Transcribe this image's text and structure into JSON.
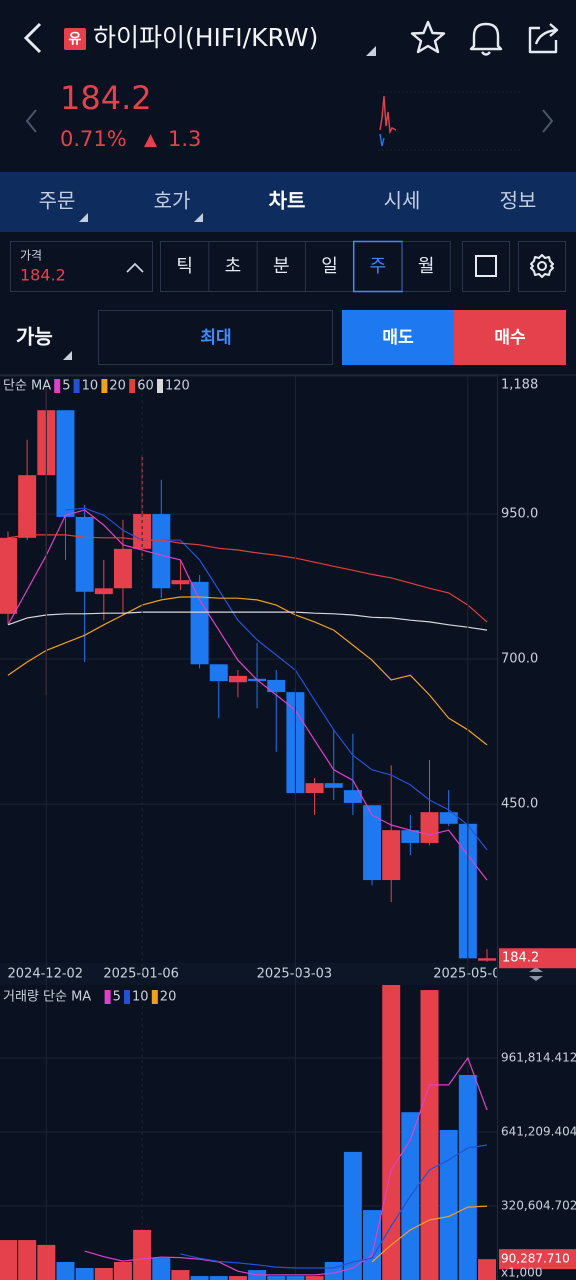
{
  "header": {
    "badge": "유",
    "title": "하이파이(HIFI/KRW)"
  },
  "quote": {
    "price": "184.2",
    "change_pct": "0.71%",
    "arrow": "▲",
    "change": "1.3"
  },
  "tabs": [
    "주문",
    "호가",
    "차트",
    "시세",
    "정보"
  ],
  "active_tab": 2,
  "price_box": {
    "label": "가격",
    "value": "184.2"
  },
  "periods": [
    "틱",
    "초",
    "분",
    "일",
    "주",
    "월"
  ],
  "active_period": 4,
  "order": {
    "available": "가능",
    "max": "최대",
    "sell": "매도",
    "buy": "매수"
  },
  "chart_data": [
    {
      "type": "candlestick",
      "legend_label": "단순 MA",
      "categories": [
        null,
        null,
        "2024-12-02",
        null,
        null,
        null,
        null,
        "2025-01-06",
        null,
        null,
        null,
        null,
        null,
        null,
        null,
        "2025-03-03",
        null,
        null,
        null,
        null,
        null,
        null,
        null,
        null,
        "2025-05-0",
        null
      ],
      "open": [
        778,
        909,
        1017,
        1129,
        945,
        812,
        822,
        890,
        950,
        829,
        833,
        691,
        660,
        666,
        664,
        643,
        469,
        486,
        474,
        448,
        319,
        405,
        383,
        436,
        416,
        180
      ],
      "high": [
        920,
        1078,
        1172,
        1129,
        966,
        871,
        940,
        1052,
        1009,
        871,
        845,
        691,
        681,
        728,
        681,
        650,
        495,
        578,
        571,
        448,
        517,
        431,
        526,
        474,
        452,
        200
      ],
      "low": [
        760,
        905,
        638,
        871,
        695,
        767,
        776,
        871,
        805,
        819,
        684,
        598,
        634,
        615,
        540,
        466,
        431,
        457,
        431,
        310,
        281,
        362,
        379,
        412,
        180,
        178
      ],
      "close": [
        909,
        1017,
        1129,
        945,
        816,
        822,
        890,
        950,
        822,
        836,
        691,
        662,
        671,
        662,
        643,
        469,
        486,
        478,
        452,
        319,
        405,
        383,
        436,
        416,
        184,
        184.2
      ],
      "up_color": "#e5414d",
      "down_color": "#1e78f0",
      "series": [
        {
          "name": "5",
          "color": "#e040c8",
          "values": [
            759,
            819,
            879,
            948,
            957,
            931,
            897,
            888,
            879,
            871,
            802,
            750,
            698,
            664,
            638,
            612,
            560,
            509,
            491,
            431,
            414,
            405,
            397,
            405,
            362,
            319
          ]
        },
        {
          "name": "10",
          "color": "#2452d6",
          "values": [
            null,
            null,
            null,
            957,
            960,
            948,
            922,
            905,
            905,
            905,
            871,
            819,
            767,
            733,
            707,
            681,
            629,
            578,
            534,
            509,
            500,
            483,
            457,
            440,
            414,
            371
          ]
        },
        {
          "name": "20",
          "color": "#f0a020",
          "values": [
            672,
            695,
            715,
            728,
            741,
            759,
            776,
            793,
            802,
            807,
            807,
            805,
            805,
            802,
            793,
            776,
            764,
            750,
            724,
            698,
            664,
            672,
            638,
            598,
            578,
            552
          ]
        },
        {
          "name": "60",
          "color": "#e0403c",
          "values": [
            909,
            914,
            914,
            914,
            910,
            909,
            909,
            905,
            905,
            900,
            897,
            891,
            888,
            883,
            879,
            874,
            867,
            860,
            853,
            846,
            840,
            831,
            822,
            814,
            793,
            764
          ]
        },
        {
          "name": "120",
          "color": "#d8d8d8",
          "values": [
            759,
            771,
            776,
            778,
            778,
            779,
            779,
            781,
            781,
            781,
            781,
            781,
            781,
            781,
            781,
            781,
            779,
            778,
            776,
            772,
            771,
            767,
            764,
            759,
            755,
            750
          ]
        }
      ],
      "ylim": [
        176,
        1188
      ],
      "yticks": [
        {
          "value": 1188,
          "label": "1,188"
        },
        {
          "value": 950,
          "label": "950.0"
        },
        {
          "value": 700,
          "label": "700.0"
        },
        {
          "value": 450,
          "label": "450.0"
        }
      ],
      "grid": true
    },
    {
      "type": "bar",
      "legend_label": "거래량 단순 MA",
      "values": [
        173000,
        173000,
        152000,
        78000,
        52000,
        52000,
        78000,
        217000,
        95000,
        43000,
        17000,
        17000,
        17000,
        43000,
        17000,
        17000,
        17000,
        78000,
        555000,
        303000,
        1300000,
        727000,
        1256000,
        650000,
        888000,
        90287.71
      ],
      "value_labels": [
        null,
        null,
        null,
        null,
        null,
        null,
        null,
        null,
        null,
        null,
        null,
        null,
        null,
        null,
        null,
        null,
        null,
        null,
        null,
        null,
        null,
        null,
        null,
        null,
        null,
        "90,287.710"
      ],
      "series": [
        {
          "name": "5",
          "color": "#e040c8",
          "values": [
            null,
            null,
            null,
            null,
            125000,
            101000,
            82000,
            91000,
            99000,
            97000,
            90000,
            78000,
            38000,
            22000,
            22000,
            22000,
            22000,
            30000,
            52000,
            108000,
            477000,
            607000,
            845000,
            845000,
            962000,
            736000
          ]
        },
        {
          "name": "10",
          "color": "#2452d6",
          "values": [
            null,
            null,
            null,
            null,
            null,
            null,
            null,
            null,
            null,
            113000,
            94000,
            80000,
            74000,
            66000,
            56000,
            52000,
            52000,
            52000,
            78000,
            95000,
            234000,
            364000,
            477000,
            520000,
            572000,
            585000
          ]
        },
        {
          "name": "20",
          "color": "#f0a020",
          "values": [
            null,
            null,
            null,
            null,
            null,
            null,
            null,
            null,
            null,
            null,
            null,
            null,
            null,
            null,
            null,
            null,
            null,
            null,
            null,
            78000,
            152000,
            217000,
            260000,
            275000,
            316000,
            320000
          ]
        }
      ],
      "ylim": [
        0,
        1278000
      ],
      "yticks": [
        {
          "value": 961814.412,
          "label": "961,814.412"
        },
        {
          "value": 641209.404,
          "label": "641,209.404"
        },
        {
          "value": 320604.702,
          "label": "320,604.702"
        }
      ],
      "unit_label": "x1,000",
      "grid": true
    }
  ]
}
